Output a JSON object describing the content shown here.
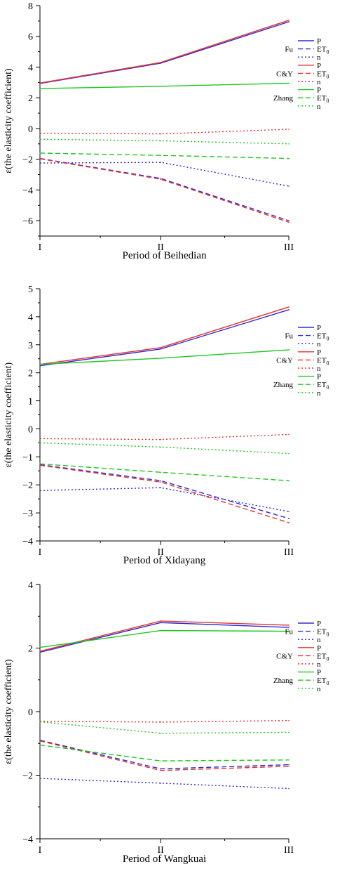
{
  "chart_data": [
    {
      "type": "line",
      "title": "",
      "xlabel": "Period of Beihedian",
      "ylabel": "ε(the elasticity coefficient)",
      "categories": [
        "I",
        "II",
        "III"
      ],
      "ylim": [
        -7,
        8
      ],
      "yticks": [
        "−6",
        "−4",
        "−2",
        "0",
        "2",
        "4",
        "6",
        "8"
      ],
      "grid": false,
      "legend_position": "right",
      "series": [
        {
          "group": "Fu",
          "name": "P",
          "color": "#2b2bd8",
          "dash": "solid",
          "values": [
            2.93,
            4.25,
            6.95
          ]
        },
        {
          "group": "Fu",
          "name": "ET0",
          "color": "#2b2bd8",
          "dash": "dashed",
          "values": [
            -1.95,
            -3.25,
            -6.0
          ]
        },
        {
          "group": "Fu",
          "name": "n",
          "color": "#2b2bd8",
          "dash": "dotted",
          "values": [
            -2.25,
            -2.2,
            -3.75
          ]
        },
        {
          "group": "C&Y",
          "name": "P",
          "color": "#e8312a",
          "dash": "solid",
          "values": [
            2.96,
            4.3,
            7.05
          ]
        },
        {
          "group": "C&Y",
          "name": "ET0",
          "color": "#e8312a",
          "dash": "dashed",
          "values": [
            -1.97,
            -3.3,
            -6.1
          ]
        },
        {
          "group": "C&Y",
          "name": "n",
          "color": "#e8312a",
          "dash": "dotted",
          "values": [
            -0.3,
            -0.35,
            -0.05
          ]
        },
        {
          "group": "Zhang",
          "name": "P",
          "color": "#1fc81f",
          "dash": "solid",
          "values": [
            2.6,
            2.75,
            2.95
          ]
        },
        {
          "group": "Zhang",
          "name": "ET0",
          "color": "#1fc81f",
          "dash": "dashed",
          "values": [
            -1.6,
            -1.75,
            -1.95
          ]
        },
        {
          "group": "Zhang",
          "name": "n",
          "color": "#1fc81f",
          "dash": "dotted",
          "values": [
            -0.7,
            -0.8,
            -1.0
          ]
        }
      ]
    },
    {
      "type": "line",
      "title": "",
      "xlabel": "Period of Xidayang",
      "ylabel": "ε(the elasticity coefficient)",
      "categories": [
        "I",
        "II",
        "III"
      ],
      "ylim": [
        -4,
        5
      ],
      "yticks": [
        "−4",
        "−3",
        "−2",
        "−1",
        "0",
        "1",
        "2",
        "3",
        "4",
        "5"
      ],
      "grid": false,
      "legend_position": "right",
      "series": [
        {
          "group": "Fu",
          "name": "P",
          "color": "#2b2bd8",
          "dash": "solid",
          "values": [
            2.25,
            2.85,
            4.25
          ]
        },
        {
          "group": "Fu",
          "name": "ET0",
          "color": "#2b2bd8",
          "dash": "dashed",
          "values": [
            -1.28,
            -1.85,
            -3.2
          ]
        },
        {
          "group": "Fu",
          "name": "n",
          "color": "#2b2bd8",
          "dash": "dotted",
          "values": [
            -2.2,
            -2.1,
            -2.95
          ]
        },
        {
          "group": "C&Y",
          "name": "P",
          "color": "#e8312a",
          "dash": "solid",
          "values": [
            2.3,
            2.9,
            4.35
          ]
        },
        {
          "group": "C&Y",
          "name": "ET0",
          "color": "#e8312a",
          "dash": "dashed",
          "values": [
            -1.3,
            -1.9,
            -3.35
          ]
        },
        {
          "group": "C&Y",
          "name": "n",
          "color": "#e8312a",
          "dash": "dotted",
          "values": [
            -0.35,
            -0.38,
            -0.2
          ]
        },
        {
          "group": "Zhang",
          "name": "P",
          "color": "#1fc81f",
          "dash": "solid",
          "values": [
            2.3,
            2.52,
            2.82
          ]
        },
        {
          "group": "Zhang",
          "name": "ET0",
          "color": "#1fc81f",
          "dash": "dashed",
          "values": [
            -1.25,
            -1.55,
            -1.85
          ]
        },
        {
          "group": "Zhang",
          "name": "n",
          "color": "#1fc81f",
          "dash": "dotted",
          "values": [
            -0.5,
            -0.65,
            -0.88
          ]
        }
      ]
    },
    {
      "type": "line",
      "title": "",
      "xlabel": "Period of Wangkuai",
      "ylabel": "ε(the elasticity coefficient)",
      "categories": [
        "I",
        "II",
        "III"
      ],
      "ylim": [
        -4,
        4
      ],
      "yticks": [
        "−4",
        "−2",
        "0",
        "2",
        "4"
      ],
      "grid": false,
      "legend_position": "right",
      "series": [
        {
          "group": "Fu",
          "name": "P",
          "color": "#2b2bd8",
          "dash": "solid",
          "values": [
            1.87,
            2.8,
            2.65
          ]
        },
        {
          "group": "Fu",
          "name": "ET0",
          "color": "#2b2bd8",
          "dash": "dashed",
          "values": [
            -0.9,
            -1.8,
            -1.67
          ]
        },
        {
          "group": "Fu",
          "name": "n",
          "color": "#2b2bd8",
          "dash": "dotted",
          "values": [
            -2.1,
            -2.25,
            -2.42
          ]
        },
        {
          "group": "C&Y",
          "name": "P",
          "color": "#e8312a",
          "dash": "solid",
          "values": [
            1.9,
            2.85,
            2.72
          ]
        },
        {
          "group": "C&Y",
          "name": "ET0",
          "color": "#e8312a",
          "dash": "dashed",
          "values": [
            -0.92,
            -1.85,
            -1.72
          ]
        },
        {
          "group": "C&Y",
          "name": "n",
          "color": "#e8312a",
          "dash": "dotted",
          "values": [
            -0.3,
            -0.33,
            -0.28
          ]
        },
        {
          "group": "Zhang",
          "name": "P",
          "color": "#1fc81f",
          "dash": "solid",
          "values": [
            2.02,
            2.55,
            2.53
          ]
        },
        {
          "group": "Zhang",
          "name": "ET0",
          "color": "#1fc81f",
          "dash": "dashed",
          "values": [
            -1.05,
            -1.55,
            -1.52
          ]
        },
        {
          "group": "Zhang",
          "name": "n",
          "color": "#1fc81f",
          "dash": "dotted",
          "values": [
            -0.32,
            -0.68,
            -0.65
          ]
        }
      ]
    }
  ],
  "legend": {
    "groups": [
      "Fu",
      "C&Y",
      "Zhang"
    ],
    "entries": [
      "P",
      "ET",
      "n"
    ],
    "et_subscript": "0"
  }
}
